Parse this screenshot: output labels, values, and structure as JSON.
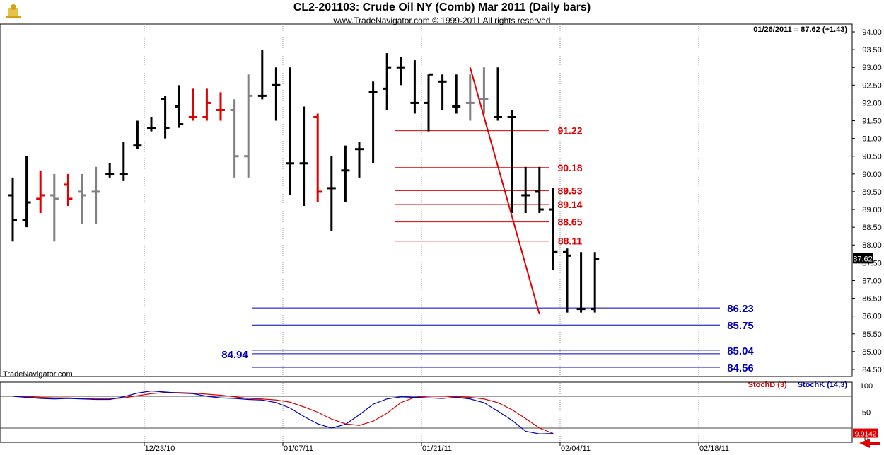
{
  "header": {
    "title": "CL2-201103:  Crude Oil NY (Comb) Mar 2011  (Daily bars)",
    "subtitle": "www.TradeNavigator.com © 1999-2011 All rights reserved",
    "readout": "01/26/2011 = 87.62 (+1.43)",
    "watermark": "TradeNavigator.com",
    "last_price_tag": "87.62",
    "stoch_last_tag": "9.9142"
  },
  "colors": {
    "up_bar": "#000000",
    "gray_bar": "#808080",
    "red_bar": "#e00000",
    "red_level": "#e00000",
    "blue_level": "#0000c0",
    "stochD": "#e00000",
    "stochK": "#0000c0"
  },
  "chart_data": [
    {
      "type": "ohlc",
      "title": "CL2-201103:  Crude Oil NY (Comb) Mar 2011  (Daily bars)",
      "y_ticks": [
        "94.00",
        "93.50",
        "93.00",
        "92.50",
        "92.00",
        "91.50",
        "91.00",
        "90.50",
        "90.00",
        "89.50",
        "89.00",
        "88.50",
        "88.00",
        "87.50",
        "87.00",
        "86.50",
        "86.00",
        "85.50",
        "85.00",
        "84.50"
      ],
      "ylim": [
        84.3,
        94.1
      ],
      "x_ticks": [
        {
          "label": "12/23/10",
          "bar": 10
        },
        {
          "label": "01/07/11",
          "bar": 20
        },
        {
          "label": "01/21/11",
          "bar": 30
        },
        {
          "label": "02/04/11",
          "bar": 40
        },
        {
          "label": "02/18/11",
          "bar": 50
        }
      ],
      "bars": [
        {
          "o": 89.4,
          "h": 89.9,
          "l": 88.1,
          "c": 88.7,
          "color": "black"
        },
        {
          "o": 88.7,
          "h": 90.5,
          "l": 88.5,
          "c": 89.2,
          "color": "black"
        },
        {
          "o": 89.3,
          "h": 90.1,
          "l": 88.9,
          "c": 89.4,
          "color": "red"
        },
        {
          "o": 89.4,
          "h": 90.0,
          "l": 88.1,
          "c": 89.3,
          "color": "gray"
        },
        {
          "o": 89.7,
          "h": 90.0,
          "l": 89.1,
          "c": 89.3,
          "color": "red"
        },
        {
          "o": 89.5,
          "h": 90.0,
          "l": 88.6,
          "c": 89.4,
          "color": "gray"
        },
        {
          "o": 89.5,
          "h": 90.2,
          "l": 88.6,
          "c": 89.5,
          "color": "gray"
        },
        {
          "o": 90.0,
          "h": 90.3,
          "l": 89.9,
          "c": 90.0,
          "color": "black"
        },
        {
          "o": 90.0,
          "h": 90.9,
          "l": 89.8,
          "c": 90.0,
          "color": "black"
        },
        {
          "o": 90.8,
          "h": 91.5,
          "l": 90.7,
          "c": 90.8,
          "color": "black"
        },
        {
          "o": 91.3,
          "h": 91.6,
          "l": 91.2,
          "c": 91.3,
          "color": "black"
        },
        {
          "o": 92.1,
          "h": 92.2,
          "l": 91.0,
          "c": 91.3,
          "color": "black"
        },
        {
          "o": 91.9,
          "h": 92.5,
          "l": 91.3,
          "c": 91.4,
          "color": "black"
        },
        {
          "o": 91.6,
          "h": 92.4,
          "l": 91.5,
          "c": 91.6,
          "color": "red"
        },
        {
          "o": 91.6,
          "h": 92.4,
          "l": 91.5,
          "c": 92.0,
          "color": "red"
        },
        {
          "o": 91.8,
          "h": 92.3,
          "l": 91.5,
          "c": 91.8,
          "color": "red"
        },
        {
          "o": 91.8,
          "h": 92.1,
          "l": 89.9,
          "c": 90.5,
          "color": "gray"
        },
        {
          "o": 90.5,
          "h": 92.8,
          "l": 89.9,
          "c": 92.2,
          "color": "gray"
        },
        {
          "o": 92.2,
          "h": 93.5,
          "l": 92.1,
          "c": 92.2,
          "color": "black"
        },
        {
          "o": 92.5,
          "h": 93.0,
          "l": 91.5,
          "c": 92.5,
          "color": "black"
        },
        {
          "o": 90.3,
          "h": 93.0,
          "l": 89.4,
          "c": 90.3,
          "color": "black"
        },
        {
          "o": 90.3,
          "h": 91.9,
          "l": 89.1,
          "c": 90.3,
          "color": "black"
        },
        {
          "o": 91.6,
          "h": 91.7,
          "l": 89.2,
          "c": 89.5,
          "color": "red"
        },
        {
          "o": 89.6,
          "h": 90.5,
          "l": 88.4,
          "c": 89.6,
          "color": "black"
        },
        {
          "o": 90.1,
          "h": 90.8,
          "l": 89.2,
          "c": 90.1,
          "color": "black"
        },
        {
          "o": 90.7,
          "h": 90.9,
          "l": 89.9,
          "c": 90.7,
          "color": "black"
        },
        {
          "o": 92.3,
          "h": 92.6,
          "l": 90.3,
          "c": 92.3,
          "color": "black"
        },
        {
          "o": 92.4,
          "h": 93.4,
          "l": 91.8,
          "c": 93.0,
          "color": "black"
        },
        {
          "o": 93.0,
          "h": 93.3,
          "l": 92.5,
          "c": 93.0,
          "color": "black"
        },
        {
          "o": 92.0,
          "h": 93.2,
          "l": 91.7,
          "c": 92.0,
          "color": "black"
        },
        {
          "o": 92.0,
          "h": 92.8,
          "l": 91.2,
          "c": 92.8,
          "color": "black"
        },
        {
          "o": 92.6,
          "h": 92.8,
          "l": 91.8,
          "c": 92.6,
          "color": "black"
        },
        {
          "o": 91.9,
          "h": 92.8,
          "l": 91.7,
          "c": 91.9,
          "color": "black"
        },
        {
          "o": 92.0,
          "h": 92.8,
          "l": 91.5,
          "c": 92.0,
          "color": "gray"
        },
        {
          "o": 92.1,
          "h": 93.0,
          "l": 91.7,
          "c": 92.1,
          "color": "gray"
        },
        {
          "o": 91.6,
          "h": 93.0,
          "l": 91.5,
          "c": 91.6,
          "color": "black"
        },
        {
          "o": 91.6,
          "h": 91.8,
          "l": 88.9,
          "c": 91.6,
          "color": "black"
        },
        {
          "o": 89.4,
          "h": 90.2,
          "l": 88.9,
          "c": 89.4,
          "color": "black"
        },
        {
          "o": 89.5,
          "h": 90.2,
          "l": 88.9,
          "c": 89.0,
          "color": "black"
        },
        {
          "o": 89.0,
          "h": 89.6,
          "l": 87.3,
          "c": 87.8,
          "color": "black"
        },
        {
          "o": 87.8,
          "h": 87.9,
          "l": 86.1,
          "c": 87.7,
          "color": "black"
        },
        {
          "o": 86.2,
          "h": 87.8,
          "l": 86.1,
          "c": 86.2,
          "color": "black"
        },
        {
          "o": 86.2,
          "h": 87.8,
          "l": 86.1,
          "c": 87.6,
          "color": "black"
        }
      ],
      "trendline": {
        "from": {
          "bar": 33,
          "price": 93.0
        },
        "to": {
          "bar": 38,
          "price": 86.05
        }
      },
      "red_levels": [
        "91.22",
        "90.18",
        "89.53",
        "89.14",
        "88.65",
        "88.11"
      ],
      "blue_levels": [
        "86.23",
        "85.75",
        "85.04",
        "84.56"
      ],
      "blue_levels_left_label": "84.94"
    },
    {
      "type": "line",
      "series": [
        {
          "name": "StochD (3)",
          "values": [
            80,
            79,
            78,
            77,
            77,
            76,
            75,
            75,
            77,
            81,
            85,
            87,
            87,
            86,
            84,
            82,
            79,
            76,
            75,
            73,
            69,
            60,
            50,
            37,
            28,
            25,
            33,
            48,
            68,
            78,
            80,
            80,
            79,
            78,
            75,
            68,
            55,
            38,
            20,
            10
          ]
        },
        {
          "name": "StochK (14,3)",
          "values": [
            80,
            78,
            76,
            75,
            76,
            75,
            74,
            74,
            79,
            86,
            90,
            88,
            86,
            85,
            80,
            77,
            76,
            74,
            73,
            68,
            58,
            42,
            28,
            20,
            27,
            45,
            65,
            75,
            79,
            78,
            77,
            76,
            78,
            75,
            68,
            52,
            35,
            14,
            9,
            9.9142
          ]
        }
      ],
      "y_ticks": [
        "100",
        "50",
        "0"
      ],
      "ylim": [
        0,
        100
      ],
      "reference_lines": [
        80,
        20
      ]
    }
  ]
}
